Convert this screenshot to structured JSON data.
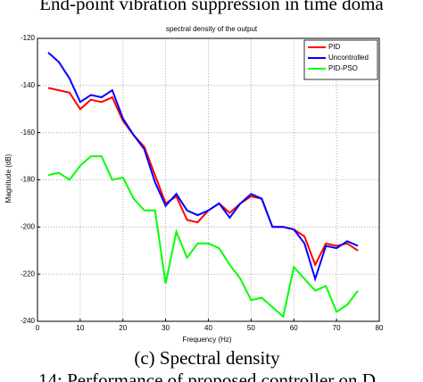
{
  "header": "End-point vibration suppression in time doma",
  "chart_data": {
    "type": "line",
    "title": "spectral density of the output",
    "xlabel": "Frequency (Hz)",
    "ylabel": "Magnitude (dB)",
    "x": [
      2.5,
      5,
      7.5,
      10,
      12.5,
      15,
      17.5,
      20,
      22.5,
      25,
      27.5,
      30,
      32.5,
      35,
      37.5,
      40,
      42.5,
      45,
      47.5,
      50,
      52.5,
      55,
      57.5,
      60,
      62.5,
      65,
      67.5,
      70,
      72.5,
      75
    ],
    "series": [
      {
        "name": "PID",
        "color": "#ff0000",
        "values": [
          -141,
          -142,
          -143,
          -150,
          -146,
          -147,
          -145,
          -155,
          -161,
          -166,
          -178,
          -190,
          -187,
          -197,
          -198,
          -193,
          -190,
          -194,
          -190,
          -187,
          -188,
          -200,
          -200,
          -201,
          -204,
          -216,
          -207,
          -208,
          -207,
          -210
        ]
      },
      {
        "name": "Uncontrolled",
        "color": "#0000ff",
        "values": [
          -126,
          -130,
          -137,
          -147,
          -144,
          -145,
          -142,
          -154,
          -161,
          -167,
          -181,
          -191,
          -186,
          -193,
          -195,
          -193,
          -190,
          -196,
          -190,
          -186,
          -188,
          -200,
          -200,
          -201,
          -207,
          -222,
          -208,
          -209,
          -206,
          -208
        ]
      },
      {
        "name": "PID-PSO",
        "color": "#00ff00",
        "values": [
          -178,
          -177,
          -180,
          -174,
          -170,
          -170,
          -180,
          -179,
          -188,
          -193,
          -193,
          -224,
          -202,
          -213,
          -207,
          -207,
          -209,
          -216,
          -222,
          -231,
          -230,
          -234,
          -238,
          -217,
          -222,
          -227,
          -225,
          -236,
          -233,
          -227
        ]
      }
    ],
    "xlim": [
      0,
      80
    ],
    "xticks": [
      0,
      10,
      20,
      30,
      40,
      50,
      60,
      70,
      80
    ],
    "ylim": [
      -240,
      -120
    ],
    "yticks": [
      -240,
      -220,
      -200,
      -180,
      -160,
      -140,
      -120
    ],
    "grid": true,
    "legend": "top-right"
  },
  "caption": "(c) Spectral density",
  "footer": "14: Performance of proposed controller on D"
}
